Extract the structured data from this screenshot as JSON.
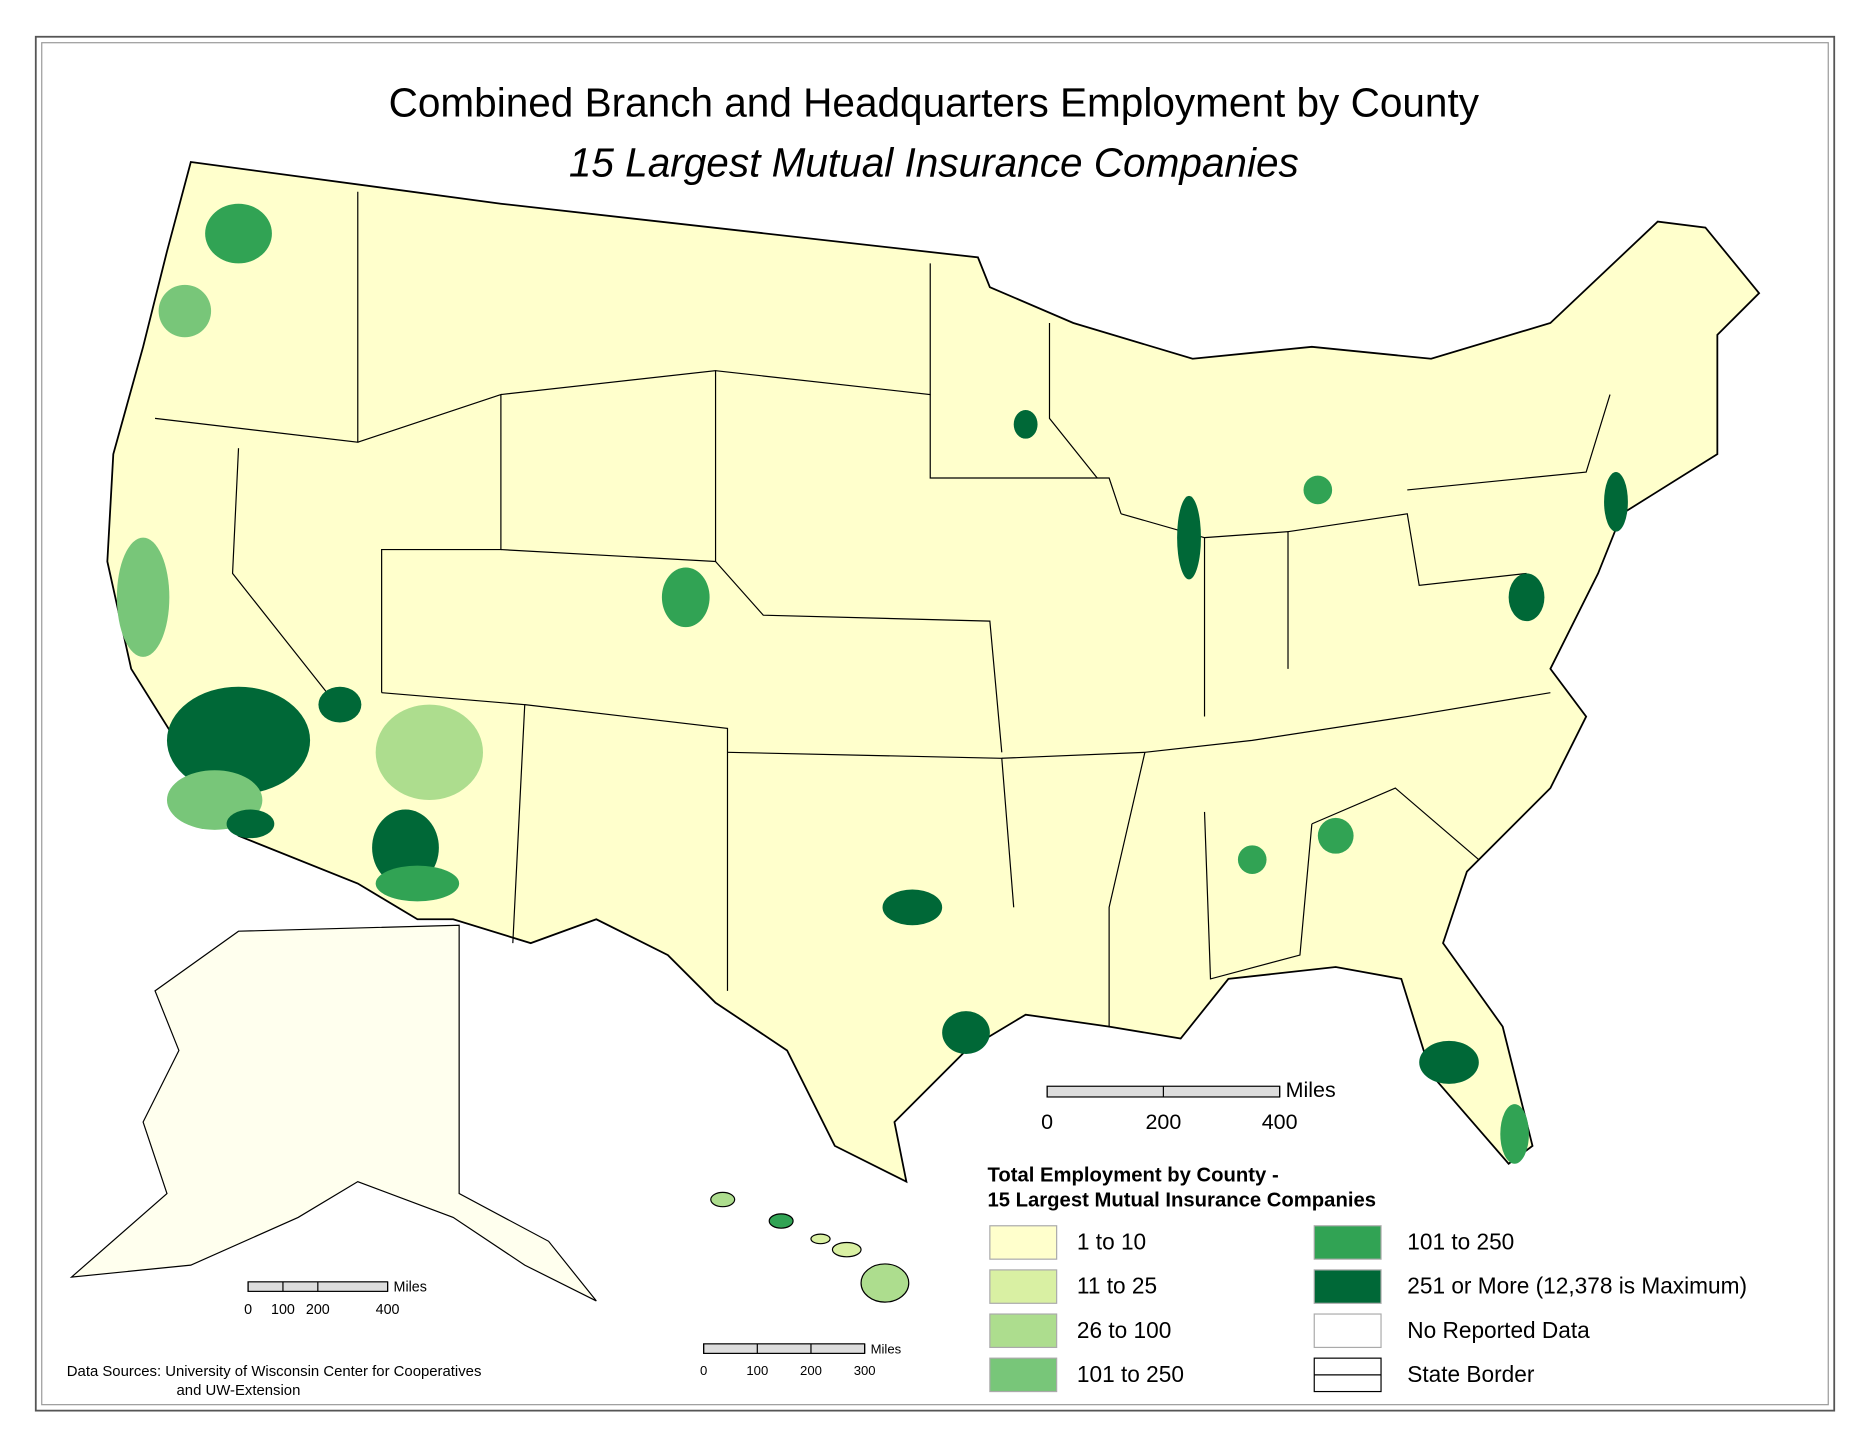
{
  "header": {
    "title": "Combined Branch and Headquarters Employment by County",
    "subtitle": "15 Largest Mutual Insurance Companies"
  },
  "legend": {
    "title_lines": [
      "Total Employment by County -",
      "15 Largest Mutual Insurance Companies"
    ],
    "items": [
      {
        "label": "1 to 10",
        "color": "#ffffcc"
      },
      {
        "label": "11 to 25",
        "color": "#d9f0a3"
      },
      {
        "label": "26 to 100",
        "color": "#addd8e"
      },
      {
        "label": "101 to 250",
        "color": "#78c679"
      },
      {
        "label": "101 to 250",
        "color": "#31a354"
      },
      {
        "label": "251 or More (12,378 is Maximum)",
        "color": "#006837"
      },
      {
        "label": "No Reported Data",
        "color": "#ffffff"
      },
      {
        "label": "State Border",
        "color": "#ffffff"
      }
    ]
  },
  "scale_bars": [
    {
      "unit": "Miles",
      "ticks": [
        0,
        200,
        400
      ]
    },
    {
      "unit": "Miles",
      "ticks": [
        0,
        100,
        200,
        400
      ]
    },
    {
      "unit": "Miles",
      "ticks": [
        0,
        100,
        200,
        300
      ]
    }
  ],
  "sources": [
    "Data Sources: University of Wisconsin Center for Cooperatives",
    "and UW-Extension"
  ]
}
